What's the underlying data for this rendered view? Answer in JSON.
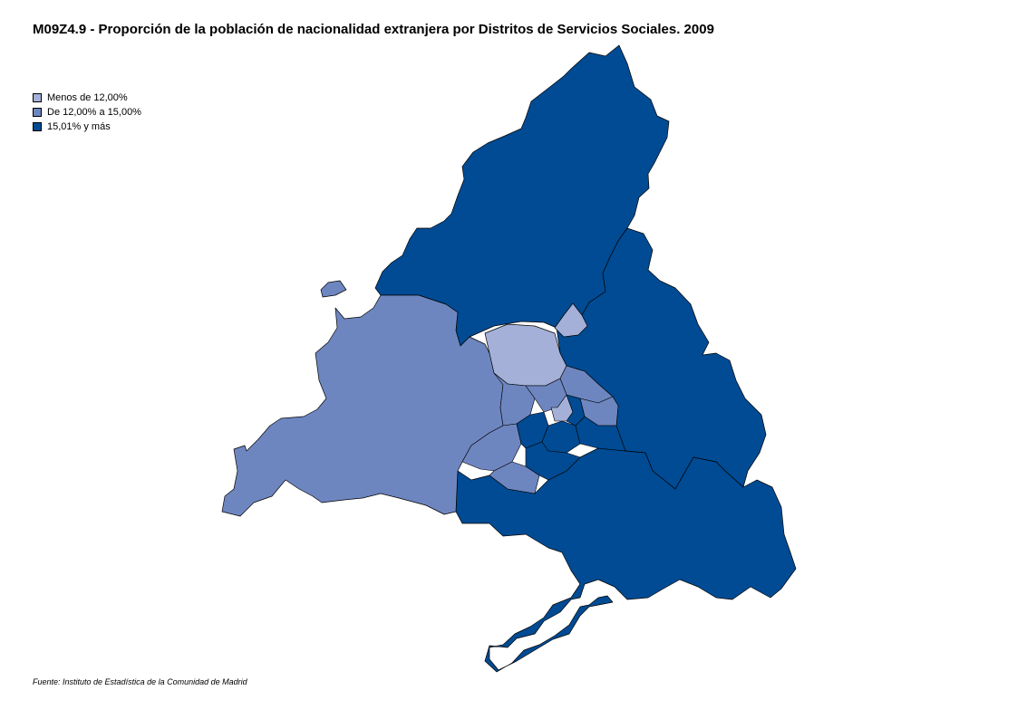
{
  "title": "M09Z4.9 - Proporción de la población de nacionalidad extranjera por Distritos de Servicios Sociales. 2009",
  "legend": {
    "items": [
      {
        "label": "Menos de 12,00%",
        "color": "#a4b0d8"
      },
      {
        "label": "De 12,00% a 15,00%",
        "color": "#6e86c0"
      },
      {
        "label": "15,01% y más",
        "color": "#004b93"
      }
    ]
  },
  "source": "Fuente: Instituto de Estadística de la Comunidad de Madrid"
}
